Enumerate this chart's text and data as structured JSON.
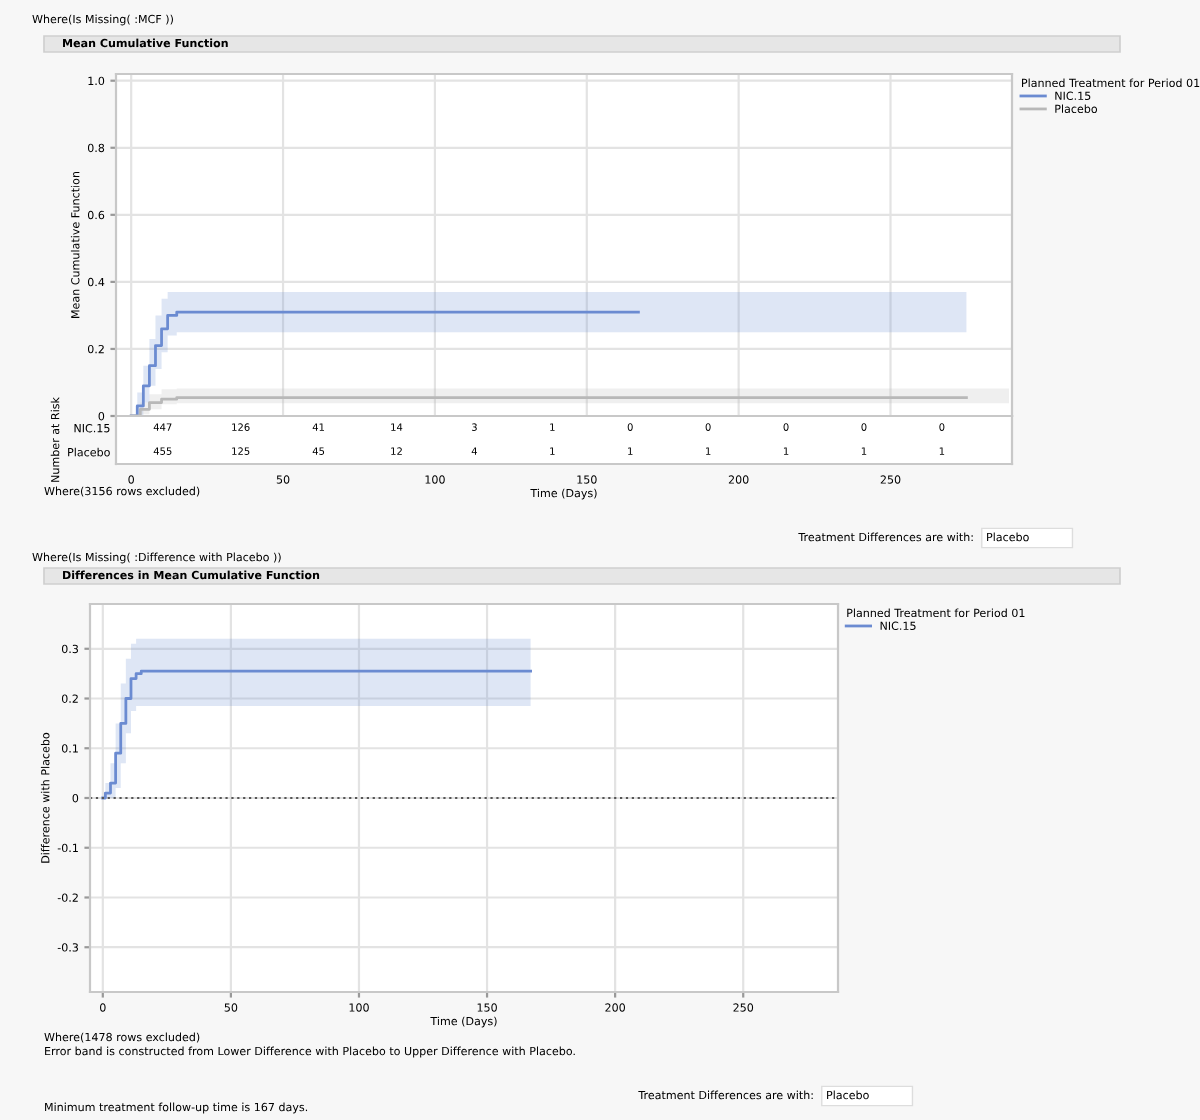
{
  "chart_data": [
    {
      "type": "step",
      "title": "Mean Cumulative Function",
      "subtitle": "Where(Is Missing( :MCF ))",
      "xlabel": "Time (Days)",
      "ylabel": "Mean Cumulative Function",
      "legend_title": "Planned Treatment for Period 01",
      "legend": "right",
      "grid": true,
      "xlim": [
        -5,
        290
      ],
      "xticks": [
        0,
        50,
        100,
        150,
        200,
        250
      ],
      "ylim": [
        0,
        1.02
      ],
      "yticks": [
        0,
        0.2,
        0.4,
        0.6,
        0.8,
        {
          "value": 1.0,
          "label": "1.0"
        }
      ],
      "series": [
        {
          "name": "NIC.15",
          "color": "#6b8bd1",
          "x": [
            0,
            2,
            4,
            6,
            8,
            10,
            12,
            15,
            167,
            275
          ],
          "values": [
            0,
            0.03,
            0.09,
            0.15,
            0.21,
            0.26,
            0.3,
            0.31,
            0.31,
            null
          ],
          "lower": [
            0,
            0,
            0.04,
            0.09,
            0.14,
            0.19,
            0.24,
            0.25,
            0.25,
            0.25
          ],
          "upper": [
            0,
            0.07,
            0.15,
            0.23,
            0.3,
            0.35,
            0.37,
            0.37,
            0.37,
            0.37
          ]
        },
        {
          "name": "Placebo",
          "color": "#b8b8b8",
          "x": [
            0,
            3,
            6,
            10,
            15,
            275,
            289
          ],
          "values": [
            0,
            0.02,
            0.04,
            0.05,
            0.055,
            0.055,
            null
          ],
          "lower": [
            0,
            0.005,
            0.02,
            0.035,
            0.038,
            0.038,
            0.038
          ],
          "upper": [
            0,
            0.04,
            0.065,
            0.08,
            0.082,
            0.082,
            0.082
          ]
        }
      ],
      "annotations": [
        "Where(3156 rows excluded)",
        "Treatment Differences are with:",
        "Placebo"
      ]
    },
    {
      "type": "heatmap",
      "ylabel": "Number at Risk",
      "data_labels": true,
      "categories": [
        null,
        null,
        null,
        null,
        null,
        null,
        null,
        null,
        null,
        null,
        null
      ],
      "y_categories": [
        "NIC.15",
        "Placebo"
      ],
      "cells": [
        [
          447,
          126,
          41,
          14,
          3,
          1,
          0,
          0,
          0,
          0,
          0
        ],
        [
          455,
          125,
          45,
          12,
          4,
          1,
          1,
          1,
          1,
          1,
          1
        ]
      ]
    },
    {
      "type": "step",
      "title": "Differences in Mean Cumulative Function",
      "subtitle": "Where(Is Missing( :Difference with Placebo ))",
      "xlabel": "Time (Days)",
      "ylabel": "Difference with Placebo",
      "legend_title": "Planned Treatment for Period 01",
      "legend": "right",
      "grid": true,
      "xlim": [
        -5,
        287
      ],
      "xticks": [
        0,
        50,
        100,
        150,
        200,
        250
      ],
      "ylim": [
        -0.39,
        0.39
      ],
      "yticks": [
        -0.3,
        -0.2,
        -0.1,
        0,
        0.1,
        0.2,
        0.3
      ],
      "ref_lines": [
        {
          "axis": "y",
          "value": 0,
          "color": "#555555",
          "line_style": "dotted"
        }
      ],
      "series": [
        {
          "name": "NIC.15",
          "color": "#6b8bd1",
          "x": [
            0,
            1,
            3,
            5,
            7,
            9,
            11,
            13,
            15,
            167
          ],
          "values": [
            0,
            0.01,
            0.03,
            0.09,
            0.15,
            0.2,
            0.24,
            0.25,
            0.255,
            0.255
          ],
          "lower": [
            0,
            0,
            0,
            0.02,
            0.07,
            0.13,
            0.175,
            0.185,
            0.185,
            0.185
          ],
          "upper": [
            0,
            0.03,
            0.07,
            0.15,
            0.23,
            0.28,
            0.31,
            0.32,
            0.32,
            0.32
          ]
        }
      ],
      "annotations": [
        "Where(1478 rows excluded)",
        "Error band is constructed from Lower Difference with Placebo to Upper Difference with Placebo.",
        "Minimum treatment follow-up time is 167 days.",
        "Treatment Differences are with:",
        "Placebo"
      ]
    }
  ]
}
